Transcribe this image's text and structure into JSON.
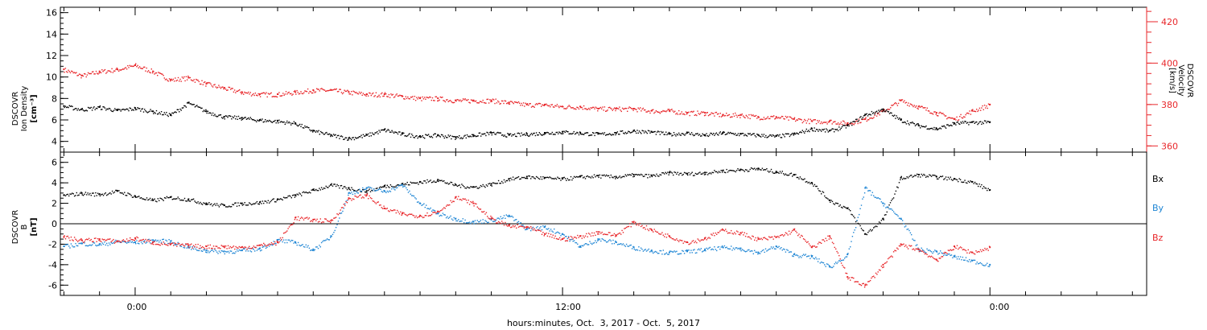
{
  "xaxis": {
    "title": "hours:minutes, Oct.  3, 2017 - Oct.  5, 2017",
    "ticks": [
      "0:00",
      "12:00",
      "0:00"
    ]
  },
  "panels": {
    "top": {
      "ylabel_left": [
        "DSCOVR",
        "Ion Density",
        "[cm⁻³]"
      ],
      "ylabel_right": [
        "DSCOVR",
        "Velocity",
        "[km/s]"
      ]
    },
    "bottom": {
      "ylabel_left": [
        "DSCOVR",
        "B",
        "[nT]"
      ],
      "legend": [
        "Bx",
        "By",
        "Bz"
      ]
    }
  },
  "colors": {
    "density": "#000000",
    "velocity": "#e8262a",
    "bx": "#000000",
    "by": "#1f86d4",
    "bz": "#e8262a"
  },
  "chart_data": [
    {
      "type": "scatter",
      "title": "",
      "xlabel": "hours:minutes, Oct.  3, 2017 - Oct.  5, 2017",
      "x_unit": "hours since Oct 3 2017 00:00",
      "xlim": [
        -2.1,
        28.4
      ],
      "xticks": [
        "0:00",
        "12:00",
        "0:00"
      ],
      "ylabel": "DSCOVR Ion Density [cm^-3]",
      "ylim": [
        3,
        16.5
      ],
      "yticks": [
        4,
        6,
        8,
        10,
        12,
        14,
        16
      ],
      "y2label": "DSCOVR Velocity [km/s]",
      "y2lim": [
        357,
        427
      ],
      "y2ticks": [
        360,
        380,
        400,
        420
      ],
      "series": [
        {
          "name": "Ion Density",
          "axis": "left",
          "color": "#000000",
          "x": [
            -2,
            -1.5,
            -1,
            -0.5,
            0,
            0.5,
            1,
            1.5,
            2,
            2.5,
            3,
            3.5,
            4,
            4.5,
            5,
            5.5,
            6,
            6.5,
            7,
            7.5,
            8,
            8.5,
            9,
            9.5,
            10,
            10.5,
            11,
            11.5,
            12,
            12.5,
            13,
            13.5,
            14,
            14.5,
            15,
            15.5,
            16,
            16.5,
            17,
            17.5,
            18,
            18.5,
            19,
            19.5,
            20,
            20.5,
            21,
            21.5,
            22,
            22.5,
            23,
            23.5,
            24
          ],
          "y": [
            7.3,
            7.0,
            7.2,
            6.9,
            7.1,
            6.8,
            6.5,
            7.6,
            6.8,
            6.3,
            6.2,
            6.0,
            5.9,
            5.7,
            5.0,
            4.6,
            4.3,
            4.6,
            5.1,
            4.7,
            4.5,
            4.6,
            4.4,
            4.6,
            4.8,
            4.6,
            4.7,
            4.8,
            4.9,
            4.8,
            4.7,
            4.8,
            5.0,
            4.9,
            4.7,
            4.8,
            4.6,
            4.8,
            4.7,
            4.6,
            4.5,
            4.7,
            5.2,
            5.0,
            5.5,
            6.5,
            7.0,
            6.0,
            5.5,
            5.2,
            5.7,
            5.8,
            5.8
          ]
        },
        {
          "name": "Velocity",
          "axis": "right",
          "color": "#e8262a",
          "x": [
            -2,
            -1.5,
            -1,
            -0.5,
            0,
            0.5,
            1,
            1.5,
            2,
            2.5,
            3,
            3.5,
            4,
            4.5,
            5,
            5.5,
            6,
            6.5,
            7,
            7.5,
            8,
            8.5,
            9,
            9.5,
            10,
            10.5,
            11,
            11.5,
            12,
            12.5,
            13,
            13.5,
            14,
            14.5,
            15,
            15.5,
            16,
            16.5,
            17,
            17.5,
            18,
            18.5,
            19,
            19.5,
            20,
            20.5,
            21,
            21.5,
            22,
            22.5,
            23,
            23.5,
            24
          ],
          "y": [
            397,
            394,
            396,
            397,
            399,
            396,
            392,
            393,
            390,
            388,
            386,
            385,
            385,
            386,
            387,
            387,
            386,
            385,
            385,
            384,
            383,
            383,
            382,
            382,
            382,
            381,
            380,
            380,
            379,
            379,
            378,
            378,
            378,
            377,
            377,
            376,
            376,
            375,
            375,
            374,
            374,
            373,
            372,
            372,
            371,
            373,
            377,
            382,
            379,
            376,
            373,
            377,
            380
          ]
        }
      ]
    },
    {
      "type": "scatter",
      "title": "",
      "xlabel": "hours:minutes, Oct.  3, 2017 - Oct.  5, 2017",
      "x_unit": "hours since Oct 3 2017 00:00",
      "xlim": [
        -2.1,
        28.4
      ],
      "xticks": [
        "0:00",
        "12:00",
        "0:00"
      ],
      "ylabel": "DSCOVR B [nT]",
      "ylim": [
        -7,
        7
      ],
      "yticks": [
        -6,
        -4,
        -2,
        0,
        2,
        4,
        6
      ],
      "zero_line": true,
      "legend": "right",
      "series": [
        {
          "name": "Bx",
          "color": "#000000",
          "x": [
            -2,
            -1.5,
            -1,
            -0.5,
            0,
            0.5,
            1,
            1.5,
            2,
            2.5,
            3,
            3.5,
            4,
            4.5,
            5,
            5.5,
            6,
            6.5,
            7,
            7.5,
            8,
            8.5,
            9,
            9.5,
            10,
            10.5,
            11,
            11.5,
            12,
            12.5,
            13,
            13.5,
            14,
            14.5,
            15,
            15.5,
            16,
            16.5,
            17,
            17.5,
            18,
            18.5,
            19,
            19.5,
            20,
            20.5,
            21,
            21.5,
            22,
            22.5,
            23,
            23.5,
            24
          ],
          "y": [
            2.8,
            3.0,
            2.9,
            3.2,
            2.7,
            2.3,
            2.6,
            2.4,
            2.0,
            1.8,
            2.0,
            2.1,
            2.4,
            2.8,
            3.3,
            3.8,
            3.5,
            3.2,
            3.7,
            3.9,
            4.1,
            4.3,
            3.8,
            3.6,
            3.9,
            4.4,
            4.6,
            4.5,
            4.4,
            4.6,
            4.7,
            4.6,
            4.8,
            4.7,
            5.0,
            4.9,
            5.0,
            5.2,
            5.3,
            5.4,
            5.1,
            4.8,
            4.0,
            2.3,
            1.5,
            -1.0,
            0.5,
            4.5,
            4.8,
            4.6,
            4.4,
            4.1,
            3.3
          ]
        },
        {
          "name": "By",
          "color": "#1f86d4",
          "x": [
            -2,
            -1.5,
            -1,
            -0.5,
            0,
            0.5,
            1,
            1.5,
            2,
            2.5,
            3,
            3.5,
            4,
            4.5,
            5,
            5.5,
            6,
            6.5,
            7,
            7.5,
            8,
            8.5,
            9,
            9.5,
            10,
            10.5,
            11,
            11.5,
            12,
            12.5,
            13,
            13.5,
            14,
            14.5,
            15,
            15.5,
            16,
            16.5,
            17,
            17.5,
            18,
            18.5,
            19,
            19.5,
            20,
            20.5,
            21,
            21.5,
            22,
            22.5,
            23,
            23.5,
            24
          ],
          "y": [
            -2.2,
            -1.9,
            -2.0,
            -1.7,
            -1.8,
            -1.6,
            -1.7,
            -2.3,
            -2.6,
            -2.7,
            -2.6,
            -2.4,
            -1.6,
            -1.8,
            -2.5,
            -1.2,
            3.0,
            3.5,
            3.2,
            3.8,
            2.0,
            1.0,
            0.5,
            0.2,
            0.4,
            0.8,
            -0.5,
            -0.3,
            -1.0,
            -2.2,
            -1.5,
            -1.8,
            -2.3,
            -2.6,
            -2.8,
            -2.7,
            -2.5,
            -2.3,
            -2.4,
            -2.8,
            -2.2,
            -3.0,
            -3.2,
            -4.2,
            -3.0,
            3.5,
            2.0,
            0.5,
            -2.5,
            -2.7,
            -3.2,
            -3.6,
            -4.0
          ]
        },
        {
          "name": "Bz",
          "color": "#e8262a",
          "x": [
            -2,
            -1.5,
            -1,
            -0.5,
            0,
            0.5,
            1,
            1.5,
            2,
            2.5,
            3,
            3.5,
            4,
            4.5,
            5,
            5.5,
            6,
            6.5,
            7,
            7.5,
            8,
            8.5,
            9,
            9.5,
            10,
            10.5,
            11,
            11.5,
            12,
            12.5,
            13,
            13.5,
            14,
            14.5,
            15,
            15.5,
            16,
            16.5,
            17,
            17.5,
            18,
            18.5,
            19,
            19.5,
            20,
            20.5,
            21,
            21.5,
            22,
            22.5,
            23,
            23.5,
            24
          ],
          "y": [
            -1.3,
            -1.6,
            -1.5,
            -1.7,
            -1.4,
            -1.8,
            -2.0,
            -2.1,
            -2.2,
            -2.2,
            -2.3,
            -2.1,
            -1.8,
            0.6,
            0.4,
            0.3,
            2.5,
            2.8,
            1.5,
            1.0,
            0.8,
            1.2,
            2.6,
            2.0,
            0.5,
            -0.2,
            -0.3,
            -1.0,
            -1.5,
            -1.2,
            -0.8,
            -1.1,
            0.2,
            -0.6,
            -1.2,
            -1.8,
            -1.4,
            -0.6,
            -0.9,
            -1.5,
            -1.3,
            -0.6,
            -2.3,
            -1.2,
            -5.2,
            -6.0,
            -4.0,
            -2.0,
            -2.5,
            -3.5,
            -2.2,
            -2.8,
            -2.3
          ]
        }
      ]
    }
  ]
}
